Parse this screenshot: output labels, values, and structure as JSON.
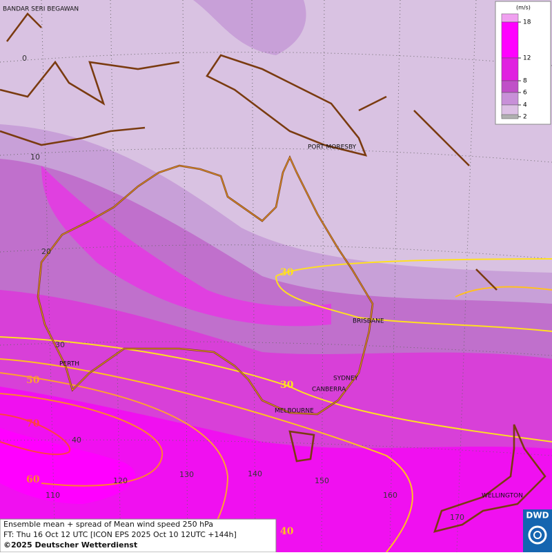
{
  "title": {
    "line1": "Ensemble mean + spread of Mean wind speed 250 hPa",
    "line2": "FT: Thu 16 Oct 12 UTC [ICON EPS 2025 Oct 10 12UTC +144h]",
    "copyright": "©2025 Deutscher Wetterdienst"
  },
  "logo": "DWD",
  "legend": {
    "unit": "(m/s)",
    "levels": [
      {
        "value": 18,
        "color": "#ff00ff"
      },
      {
        "value": 12,
        "color": "#e020e0"
      },
      {
        "value": 8,
        "color": "#c050c8"
      },
      {
        "value": 6,
        "color": "#c890d8"
      },
      {
        "value": 4,
        "color": "#dcc0e4"
      },
      {
        "value": 2,
        "color": "#b0b0b0"
      }
    ]
  },
  "cities": [
    "BANDAR SERI BEGAWAN",
    "PORT MORESBY",
    "BRISBANE",
    "PERTH",
    "SYDNEY",
    "CANBERRA",
    "MELBOURNE",
    "WELLINGTON"
  ],
  "latitudes": [
    0,
    10,
    20,
    30,
    40
  ],
  "longitudes": [
    110,
    120,
    130,
    140,
    150,
    160,
    170
  ],
  "contours": [
    30,
    30,
    40,
    50,
    60,
    70
  ]
}
